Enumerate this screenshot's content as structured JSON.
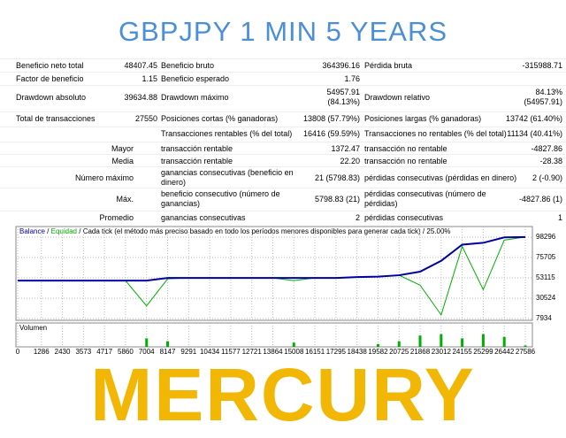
{
  "header": {
    "title": "GBPJPY 1 MIN 5 YEARS"
  },
  "stats": {
    "rows": [
      [
        "Beneficio neto total",
        "48407.45",
        "Beneficio bruto",
        "364396.16",
        "Pérdida bruta",
        "-315988.71"
      ],
      [
        "Factor de beneficio",
        "1.15",
        "Beneficio esperado",
        "1.76",
        null,
        null
      ],
      [
        "Drawdown absoluto",
        "39634.88",
        "Drawdown máximo",
        "54957.91 (84.13%)",
        "Drawdown relativo",
        "84.13% (54957.91)"
      ],
      [
        "Total de transacciones",
        "27550",
        "Posiciones cortas (% ganadoras)",
        "13808 (57.79%)",
        "Posiciones largas (% ganadoras)",
        "13742 (61.40%)"
      ],
      [
        null,
        null,
        "Transacciones rentables (% del total)",
        "16416 (59.59%)",
        "Transacciones no rentables (% del total)",
        "11134 (40.41%)"
      ],
      [
        "Mayor",
        null,
        "transacción rentable",
        "1372.47",
        "transacción no rentable",
        "-4827.86"
      ],
      [
        "Media",
        null,
        "transacción rentable",
        "22.20",
        "transacción no rentable",
        "-28.38"
      ],
      [
        "Número máximo",
        null,
        "ganancias consecutivas (beneficio en dinero)",
        "21 (5798.83)",
        "pérdidas consecutivas (pérdidas en dinero)",
        "2 (-0.90)"
      ],
      [
        "Máx.",
        null,
        "beneficio consecutivo (número de ganancias)",
        "5798.83 (21)",
        "pérdidas consecutivas (número de pérdidas)",
        "-4827.86 (1)"
      ],
      [
        "Promedio",
        null,
        "ganancias consecutivas",
        "2",
        "pérdidas consecutivas",
        "1"
      ]
    ]
  },
  "chart_data": {
    "type": "line",
    "legend_separator": "/",
    "legend_note": "Cada tick (el método más preciso basado en todo los períodos menores disponibles para generar cada tick)",
    "legend_quality": "25.00%",
    "x": [
      0,
      1286,
      2430,
      3573,
      4717,
      5860,
      7004,
      8147,
      9291,
      10434,
      11577,
      12721,
      13864,
      15008,
      16151,
      17295,
      18438,
      19582,
      20725,
      21868,
      23012,
      24155,
      25299,
      26442,
      27586
    ],
    "series": [
      {
        "name": "Balance",
        "color": "#0000a0",
        "values": [
          50000,
          50000,
          50000,
          50000,
          50000,
          50000,
          50000,
          53000,
          53000,
          53000,
          53000,
          53000,
          53000,
          53000,
          53000,
          53000,
          54000,
          54500,
          56000,
          60000,
          72000,
          90000,
          92000,
          98000,
          98407
        ]
      },
      {
        "name": "Equidad",
        "color": "#00b000",
        "values": [
          50000,
          50000,
          50000,
          50000,
          50000,
          50000,
          22000,
          52000,
          53000,
          53000,
          53000,
          53000,
          53000,
          50000,
          53000,
          53000,
          54000,
          54500,
          56000,
          45000,
          12000,
          88000,
          40000,
          95000,
          98407
        ]
      }
    ],
    "xlim": [
      0,
      27586
    ],
    "xticks": [
      0,
      1286,
      2430,
      3573,
      4717,
      5860,
      7004,
      8147,
      9291,
      10434,
      11577,
      12721,
      13864,
      15008,
      16151,
      17295,
      18438,
      19582,
      20725,
      21868,
      23012,
      24155,
      25299,
      26442,
      27586
    ],
    "ylim": [
      7934,
      98296
    ],
    "yticks": [
      7934,
      30524,
      53115,
      75705,
      98296
    ],
    "grid": true,
    "volume": {
      "label": "Volumen",
      "color": "#00b000",
      "ylim": [
        0,
        100
      ],
      "values": [
        0,
        0,
        0,
        0,
        0,
        0,
        60,
        40,
        0,
        0,
        0,
        0,
        0,
        30,
        0,
        0,
        0,
        20,
        40,
        80,
        90,
        60,
        90,
        70,
        10
      ]
    }
  },
  "footer": {
    "title": "MERCURY"
  }
}
